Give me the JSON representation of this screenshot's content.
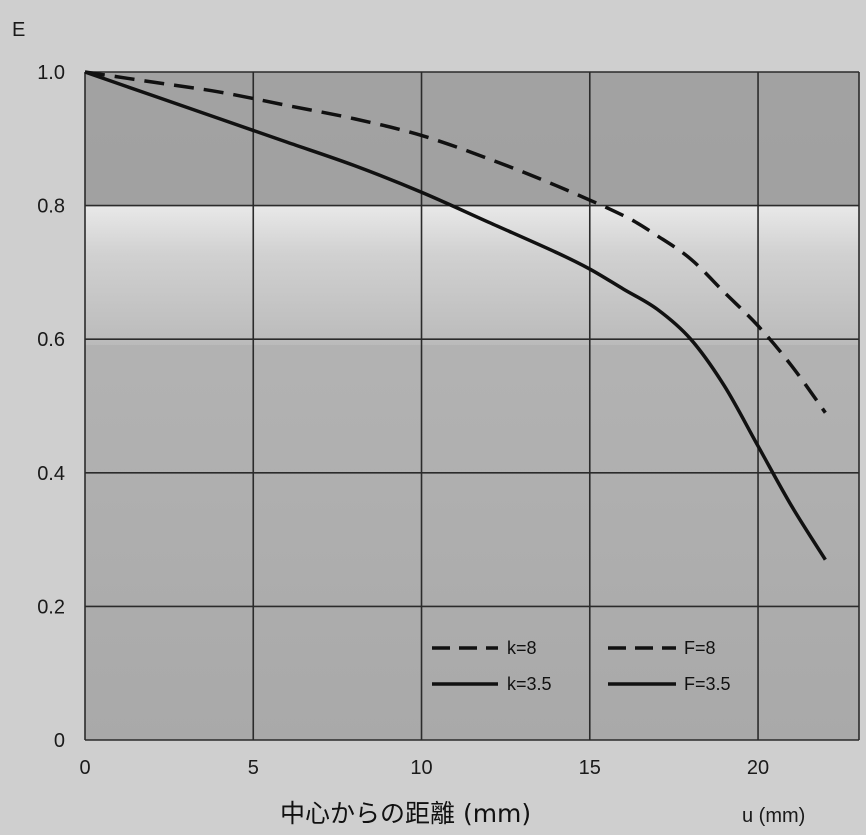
{
  "chart_data": {
    "type": "line",
    "title": "",
    "ylabel": "E",
    "xlabel": "中心からの距離 (mm)",
    "xlabel_right": "u (mm)",
    "xlim": [
      0,
      23
    ],
    "ylim": [
      0,
      1.0
    ],
    "x_ticks": [
      0,
      5,
      10,
      15,
      20
    ],
    "y_ticks": [
      0,
      0.2,
      0.4,
      0.6,
      0.8,
      1.0
    ],
    "y_tick_labels": [
      "0",
      "0.2",
      "0.4",
      "0.6",
      "0.8",
      "1.0"
    ],
    "grid": true,
    "legend_placement": "bottom-right",
    "series": [
      {
        "name": "k=8",
        "legend_key": "k8",
        "style": "dashed",
        "color": "#111111",
        "x": [
          0,
          2,
          4,
          6,
          8,
          10,
          12,
          14,
          16,
          17,
          18,
          19,
          20,
          21,
          22
        ],
        "y": [
          1.0,
          0.985,
          0.97,
          0.95,
          0.93,
          0.905,
          0.87,
          0.83,
          0.785,
          0.755,
          0.72,
          0.67,
          0.62,
          0.56,
          0.49
        ]
      },
      {
        "name": "k=3.5",
        "legend_key": "k35",
        "style": "solid",
        "color": "#111111",
        "x": [
          0,
          2,
          4,
          6,
          8,
          10,
          12,
          14,
          15,
          16,
          17,
          18,
          19,
          20,
          21,
          22
        ],
        "y": [
          1.0,
          0.965,
          0.93,
          0.895,
          0.86,
          0.82,
          0.775,
          0.73,
          0.705,
          0.675,
          0.645,
          0.6,
          0.53,
          0.44,
          0.35,
          0.27
        ]
      }
    ],
    "legend": {
      "k8": "k=8",
      "k35": "k=3.5",
      "F8": "F=8",
      "F35": "F=3.5"
    }
  }
}
